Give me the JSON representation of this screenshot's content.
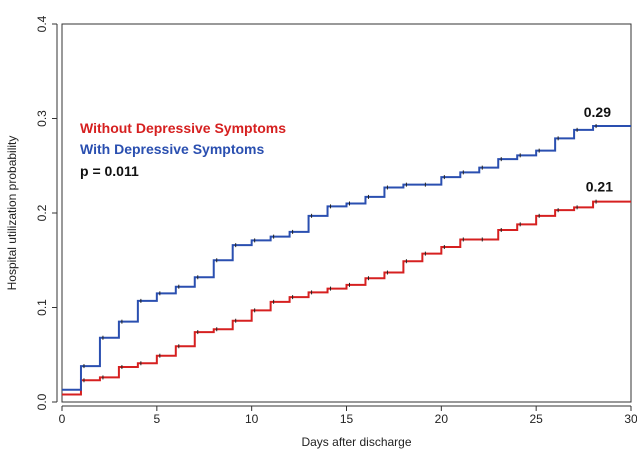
{
  "chart_data": {
    "type": "line",
    "xlabel": "Days after discharge",
    "ylabel": "Hospital utilization probability",
    "xlim": [
      0,
      30
    ],
    "ylim": [
      0,
      0.4
    ],
    "x_ticks": [
      0,
      5,
      10,
      15,
      20,
      25,
      30
    ],
    "y_ticks": [
      0,
      0.1,
      0.2,
      0.3,
      0.4
    ],
    "x_tick_labels": [
      "0",
      "5",
      "10",
      "15",
      "20",
      "25",
      "30"
    ],
    "y_tick_labels": [
      "0.0",
      "0.1",
      "0.2",
      "0.3",
      "0.4"
    ],
    "grid": false,
    "legend_position": "upper-left",
    "annotation": "p = 0.011",
    "series": [
      {
        "name": "Without Depressive Symptoms",
        "color": "#d62020",
        "step": true,
        "x": [
          0,
          1,
          2,
          3,
          4,
          5,
          6,
          7,
          8,
          9,
          10,
          11,
          12,
          13,
          14,
          15,
          16,
          17,
          18,
          19,
          20,
          21,
          22,
          23,
          24,
          25,
          26,
          27,
          28,
          30
        ],
        "y": [
          0.008,
          0.023,
          0.026,
          0.037,
          0.041,
          0.049,
          0.059,
          0.074,
          0.077,
          0.086,
          0.097,
          0.106,
          0.111,
          0.116,
          0.12,
          0.124,
          0.131,
          0.137,
          0.149,
          0.157,
          0.164,
          0.172,
          0.172,
          0.182,
          0.188,
          0.197,
          0.203,
          0.206,
          0.212,
          0.212
        ],
        "end_label": "0.21"
      },
      {
        "name": "With Depressive Symptoms",
        "color": "#2a4fb0",
        "step": true,
        "x": [
          0,
          1,
          2,
          3,
          4,
          5,
          6,
          7,
          8,
          9,
          10,
          11,
          12,
          13,
          14,
          15,
          16,
          17,
          18,
          19,
          20,
          21,
          22,
          23,
          24,
          25,
          26,
          27,
          28,
          30
        ],
        "y": [
          0.013,
          0.038,
          0.068,
          0.085,
          0.107,
          0.115,
          0.122,
          0.132,
          0.15,
          0.166,
          0.171,
          0.175,
          0.18,
          0.197,
          0.207,
          0.21,
          0.217,
          0.227,
          0.23,
          0.23,
          0.238,
          0.243,
          0.248,
          0.257,
          0.261,
          0.266,
          0.279,
          0.288,
          0.292,
          0.292
        ],
        "end_label": "0.29"
      }
    ]
  }
}
